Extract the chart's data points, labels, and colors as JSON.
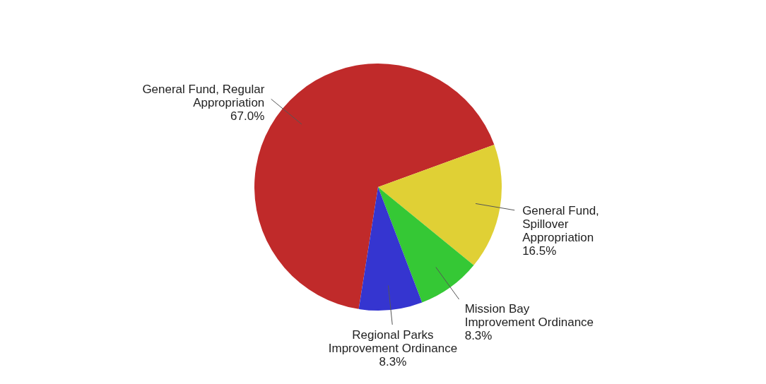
{
  "chart_data": {
    "type": "pie",
    "categories": [
      "General Fund, Regular Appropriation",
      "General Fund, Spillover Appropriation",
      "Mission Bay Improvement Ordinance",
      "Regional Parks Improvement Ordinance"
    ],
    "values": [
      67.0,
      16.5,
      8.3,
      8.3
    ],
    "colors": [
      "#c02a2a",
      "#e0d035",
      "#35c835",
      "#3535d0"
    ],
    "value_labels": [
      "67.0%",
      "16.5%",
      "8.3%",
      "8.3%"
    ],
    "legend": false
  }
}
